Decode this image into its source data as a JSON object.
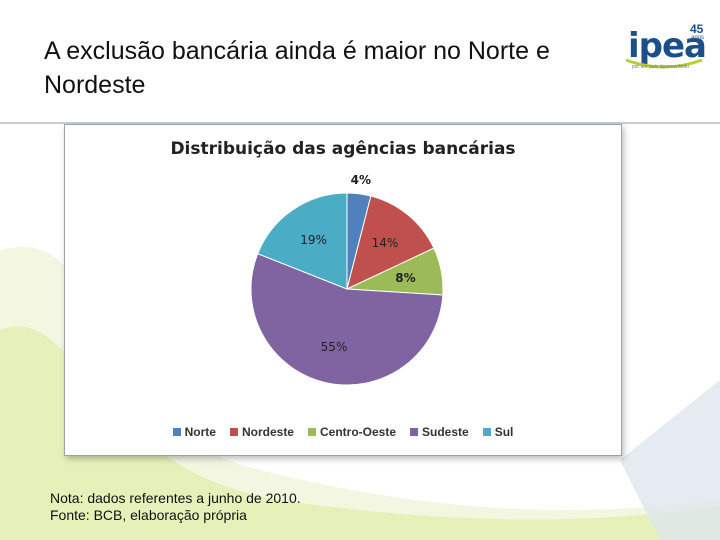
{
  "slide": {
    "title": "A exclusão bancária ainda é maior no Norte e Nordeste",
    "note_line1": "Nota: dados referentes a junho de 2010.",
    "note_line2": "Fonte: BCB, elaboração própria"
  },
  "logo": {
    "word": "ipea",
    "number": "45",
    "anos": "anos",
    "tagline": "por um país desenvolvido"
  },
  "colors": {
    "accent_green": "#b5cf3a",
    "title_border": "#c8cdd2"
  },
  "chart_data": {
    "type": "pie",
    "title": "Distribuição das agências bancárias",
    "categories": [
      "Norte",
      "Nordeste",
      "Centro-Oeste",
      "Sudeste",
      "Sul"
    ],
    "values": [
      4,
      14,
      8,
      55,
      19
    ],
    "labels": [
      "4%",
      "14%",
      "8%",
      "55%",
      "19%"
    ],
    "colors": [
      "#4f81bd",
      "#c0504d",
      "#9bbb59",
      "#8064a2",
      "#4bacc6"
    ],
    "legend_position": "bottom"
  }
}
